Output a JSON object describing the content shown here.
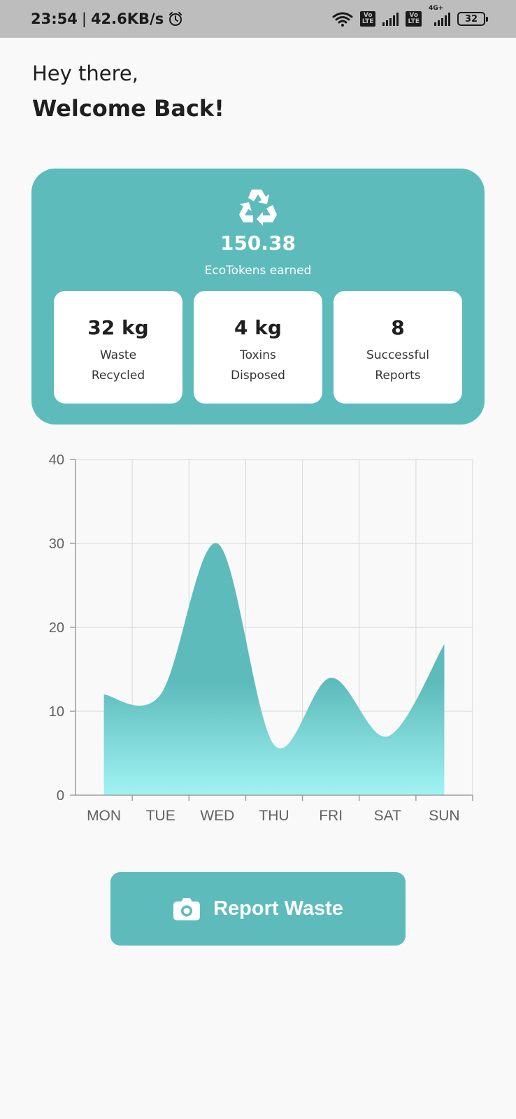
{
  "status_bar": {
    "time": "23:54",
    "separator": "|",
    "speed": "42.6KB/s",
    "lte1": "Vo\nLTE",
    "lte2": "Vo\nLTE",
    "net": "4G+",
    "battery": "32"
  },
  "header": {
    "greeting": "Hey there,",
    "welcome": "Welcome Back!"
  },
  "eco_card": {
    "icon": "recycle-icon",
    "tokens_value": "150.38",
    "tokens_label": "EcoTokens earned",
    "stats": [
      {
        "value": "32 kg",
        "label_line1": "Waste",
        "label_line2": "Recycled"
      },
      {
        "value": "4 kg",
        "label_line1": "Toxins",
        "label_line2": "Disposed"
      },
      {
        "value": "8",
        "label_line1": "Successful",
        "label_line2": "Reports"
      }
    ],
    "colors": {
      "card": "#5dbbbb",
      "stat_bg": "#ffffff"
    }
  },
  "chart_data": {
    "type": "area",
    "categories": [
      "MON",
      "TUE",
      "WED",
      "THU",
      "FRI",
      "SAT",
      "SUN"
    ],
    "values": [
      12,
      12,
      30,
      6,
      14,
      7,
      18
    ],
    "yticks": [
      "0",
      "10",
      "20",
      "30",
      "40"
    ],
    "ylim": [
      0,
      40
    ],
    "grid": true,
    "colors": {
      "top": "#5dbbbb",
      "bottom": "#a0f3f3",
      "grid": "#dddddd",
      "axis": "#9e9e9e",
      "label": "#616161"
    }
  },
  "actions": {
    "report_label": "Report Waste",
    "report_icon": "camera-icon"
  }
}
